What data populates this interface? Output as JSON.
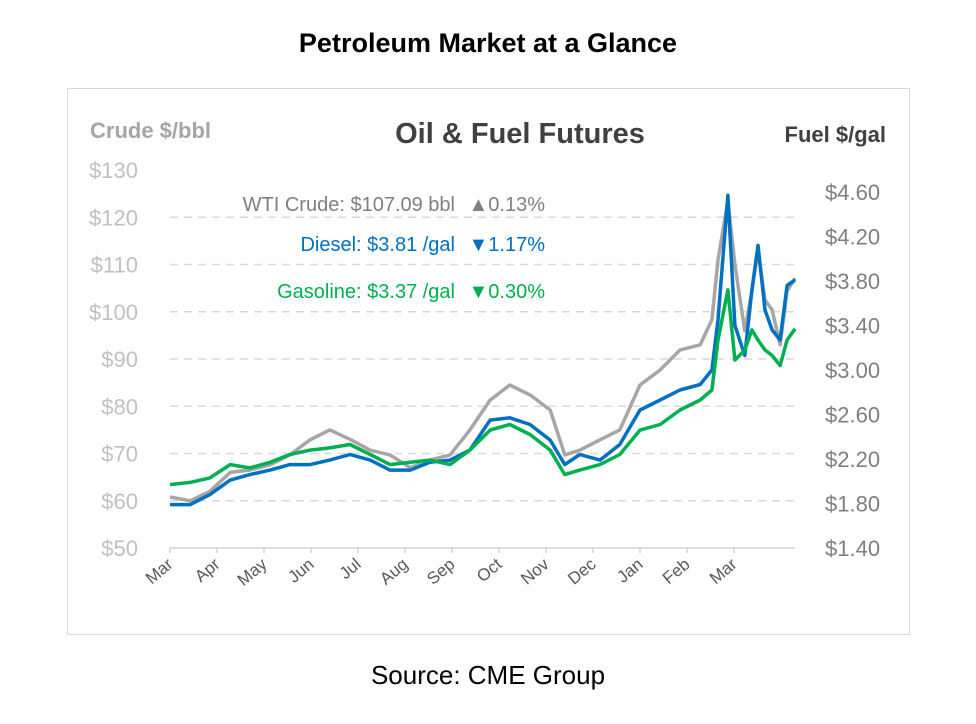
{
  "page_title": "Petroleum Market at a Glance",
  "source": "Source: CME Group",
  "chart_data": {
    "type": "line",
    "title": "Oil & Fuel Futures",
    "ylabel_left": "Crude $/bbl",
    "ylabel_right": "Fuel $/gal",
    "ylim_left": [
      50,
      130
    ],
    "ylim_right": [
      1.4,
      4.6
    ],
    "yticks_left": [
      "$50",
      "$60",
      "$70",
      "$80",
      "$90",
      "$100",
      "$110",
      "$120",
      "$130"
    ],
    "yticks_right": [
      "$1.40",
      "$1.80",
      "$2.20",
      "$2.60",
      "$3.00",
      "$3.40",
      "$3.80",
      "$4.20",
      "$4.60"
    ],
    "xticks": [
      "Mar",
      "Apr",
      "May",
      "Jun",
      "Jul",
      "Aug",
      "Sep",
      "Oct",
      "Nov",
      "Dec",
      "Jan",
      "Feb",
      "Mar"
    ],
    "grid": true,
    "x_months": [
      0,
      0.43,
      0.85,
      1.28,
      1.7,
      2.13,
      2.55,
      2.98,
      3.4,
      3.83,
      4.26,
      4.68,
      5.11,
      5.53,
      5.96,
      6.38,
      6.81,
      7.23,
      7.66,
      8.09,
      8.4,
      8.72,
      9.15,
      9.57,
      10,
      10.43,
      10.85,
      11.28,
      11.53,
      11.66,
      11.87,
      12.02,
      12.23,
      12.38,
      12.51,
      12.66,
      12.81,
      12.98,
      13.13,
      13.3
    ],
    "series": [
      {
        "name": "WTI Crude",
        "axis": "left",
        "color": "#a6a6a6",
        "label": "WTI Crude: $107.09 bbl",
        "change": "▲0.13%",
        "values": [
          60.8,
          60,
          62,
          66,
          66.5,
          67.6,
          69.7,
          72.9,
          75,
          73,
          70.7,
          69.7,
          67,
          68.6,
          69.7,
          75,
          81.3,
          84.5,
          82.4,
          79.2,
          69.7,
          70.7,
          72.9,
          75,
          84.5,
          87.7,
          91.9,
          93,
          98.3,
          111,
          123.5,
          110,
          96,
          104.4,
          113,
          102.5,
          100.4,
          93,
          104.4,
          107.09
        ]
      },
      {
        "name": "Diesel",
        "axis": "right",
        "color": "#0070c0",
        "label": "Diesel:  $3.81 /gal",
        "change": "▼1.17%",
        "values": [
          1.79,
          1.79,
          1.88,
          2.01,
          2.06,
          2.1,
          2.15,
          2.15,
          2.19,
          2.24,
          2.19,
          2.1,
          2.1,
          2.17,
          2.19,
          2.28,
          2.55,
          2.57,
          2.51,
          2.37,
          2.15,
          2.24,
          2.19,
          2.33,
          2.64,
          2.73,
          2.82,
          2.87,
          3.0,
          3.45,
          4.57,
          3.4,
          3.13,
          3.72,
          4.12,
          3.54,
          3.36,
          3.27,
          3.76,
          3.81
        ]
      },
      {
        "name": "Gasoline",
        "axis": "right",
        "color": "#00b050",
        "label": "Gasoline:  $3.37 /gal",
        "change": "▼0.30%",
        "values": [
          1.97,
          1.99,
          2.03,
          2.15,
          2.12,
          2.17,
          2.24,
          2.28,
          2.3,
          2.33,
          2.24,
          2.15,
          2.17,
          2.19,
          2.15,
          2.28,
          2.46,
          2.51,
          2.42,
          2.28,
          2.06,
          2.1,
          2.15,
          2.24,
          2.46,
          2.51,
          2.64,
          2.73,
          2.82,
          3.27,
          3.72,
          3.09,
          3.18,
          3.36,
          3.27,
          3.18,
          3.13,
          3.04,
          3.27,
          3.37
        ]
      }
    ],
    "legend_placement": "top-left inside plot"
  }
}
